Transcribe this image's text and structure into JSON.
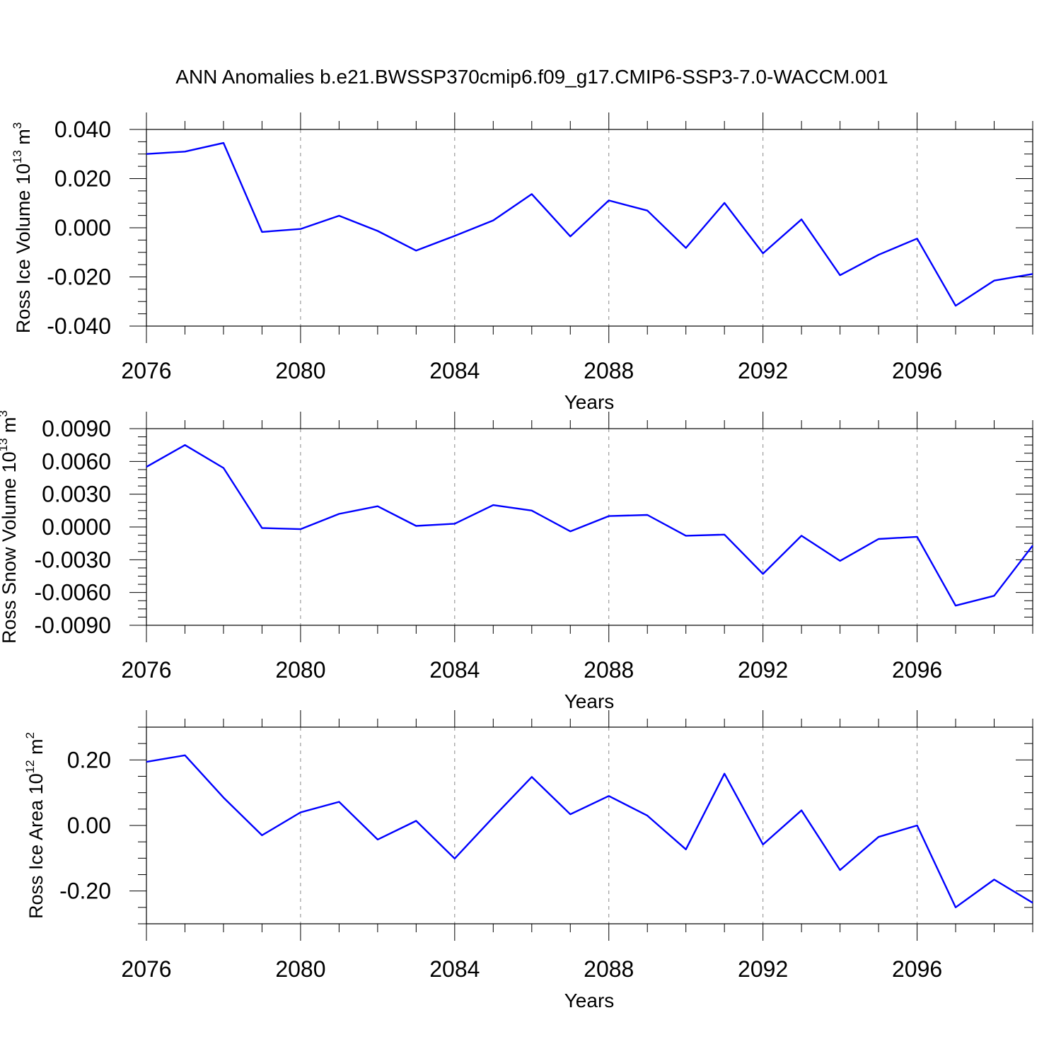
{
  "title": "ANN Anomalies b.e21.BWSSP370cmip6.f09_g17.CMIP6-SSP3-7.0-WACCM.001",
  "colors": {
    "line": "#0000ff",
    "axis": "#000000",
    "grid": "#888888"
  },
  "chart_data": [
    {
      "type": "line",
      "xlabel": "Years",
      "ylabel": {
        "main": "Ross Ice Volume 10",
        "sup": "13",
        "unit": " m",
        "unit_sup": "3"
      },
      "xlim": [
        2076,
        2099
      ],
      "ylim": [
        -0.04,
        0.04
      ],
      "x_ticks": [
        "2076",
        "2080",
        "2084",
        "2088",
        "2092",
        "2096"
      ],
      "y_ticks": [
        "0.040",
        "0.020",
        "0.000",
        "-0.020",
        "-0.040"
      ],
      "x": [
        2076,
        2077,
        2078,
        2079,
        2080,
        2081,
        2082,
        2083,
        2084,
        2085,
        2086,
        2087,
        2088,
        2089,
        2090,
        2091,
        2092,
        2093,
        2094,
        2095,
        2096,
        2097,
        2098,
        2099
      ],
      "series": [
        {
          "values": [
            0.03,
            0.031,
            0.0345,
            -0.0017,
            -0.0005,
            0.0049,
            -0.0013,
            -0.0093,
            -0.0033,
            0.003,
            0.0137,
            -0.0035,
            0.0111,
            0.007,
            -0.0082,
            0.0101,
            -0.0104,
            0.0034,
            -0.0193,
            -0.011,
            -0.0044,
            -0.0317,
            -0.0215,
            -0.0188
          ]
        }
      ]
    },
    {
      "type": "line",
      "xlabel": "Years",
      "ylabel": {
        "main": "Ross Snow Volume 10",
        "sup": "13",
        "unit": " m",
        "unit_sup": "3"
      },
      "xlim": [
        2076,
        2099
      ],
      "ylim": [
        -0.009,
        0.009
      ],
      "x_ticks": [
        "2076",
        "2080",
        "2084",
        "2088",
        "2092",
        "2096"
      ],
      "y_ticks": [
        "0.0090",
        "0.0060",
        "0.0030",
        "0.0000",
        "-0.0030",
        "-0.0060",
        "-0.0090"
      ],
      "x": [
        2076,
        2077,
        2078,
        2079,
        2080,
        2081,
        2082,
        2083,
        2084,
        2085,
        2086,
        2087,
        2088,
        2089,
        2090,
        2091,
        2092,
        2093,
        2094,
        2095,
        2096,
        2097,
        2098,
        2099
      ],
      "series": [
        {
          "values": [
            0.0055,
            0.0075,
            0.0054,
            -0.0001,
            -0.0002,
            0.0012,
            0.0019,
            0.0001,
            0.0003,
            0.002,
            0.0015,
            -0.0004,
            0.001,
            0.0011,
            -0.0008,
            -0.0007,
            -0.0043,
            -0.0008,
            -0.0031,
            -0.0011,
            -0.0009,
            -0.0072,
            -0.0063,
            -0.0017
          ]
        }
      ]
    },
    {
      "type": "line",
      "xlabel": "Years",
      "ylabel": {
        "main": "Ross Ice Area 10",
        "sup": "12",
        "unit": " m",
        "unit_sup": "2"
      },
      "xlim": [
        2076,
        2099
      ],
      "ylim": [
        -0.3,
        0.3
      ],
      "x_ticks": [
        "2076",
        "2080",
        "2084",
        "2088",
        "2092",
        "2096"
      ],
      "y_ticks": [
        "0.20",
        "0.00",
        "-0.20"
      ],
      "x": [
        2076,
        2077,
        2078,
        2079,
        2080,
        2081,
        2082,
        2083,
        2084,
        2085,
        2086,
        2087,
        2088,
        2089,
        2090,
        2091,
        2092,
        2093,
        2094,
        2095,
        2096,
        2097,
        2098,
        2099
      ],
      "series": [
        {
          "values": [
            0.194,
            0.214,
            0.085,
            -0.03,
            0.04,
            0.072,
            -0.043,
            0.014,
            -0.101,
            0.025,
            0.148,
            0.034,
            0.09,
            0.03,
            -0.073,
            0.158,
            -0.058,
            0.046,
            -0.136,
            -0.035,
            0.0,
            -0.25,
            -0.165,
            -0.236
          ]
        }
      ]
    }
  ]
}
